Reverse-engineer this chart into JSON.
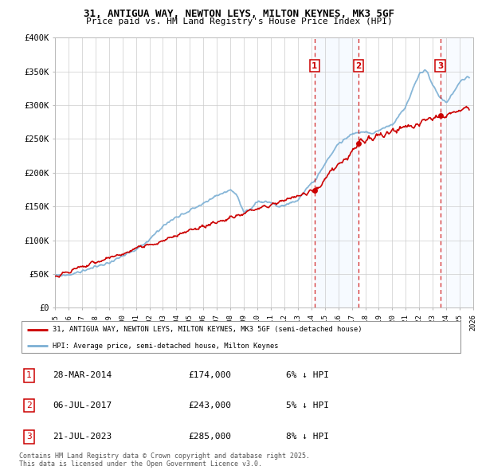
{
  "title_line1": "31, ANTIGUA WAY, NEWTON LEYS, MILTON KEYNES, MK3 5GF",
  "title_line2": "Price paid vs. HM Land Registry's House Price Index (HPI)",
  "ylabel_ticks": [
    "£0",
    "£50K",
    "£100K",
    "£150K",
    "£200K",
    "£250K",
    "£300K",
    "£350K",
    "£400K"
  ],
  "ytick_values": [
    0,
    50000,
    100000,
    150000,
    200000,
    250000,
    300000,
    350000,
    400000
  ],
  "hpi_color": "#7bafd4",
  "price_color": "#cc0000",
  "vline_color": "#cc0000",
  "shade_color": "#ddeeff",
  "legend_label_red": "31, ANTIGUA WAY, NEWTON LEYS, MILTON KEYNES, MK3 5GF (semi-detached house)",
  "legend_label_blue": "HPI: Average price, semi-detached house, Milton Keynes",
  "sales": [
    {
      "label": "1",
      "date": "28-MAR-2014",
      "price": 174000,
      "note": "6% ↓ HPI",
      "year": 2014.24
    },
    {
      "label": "2",
      "date": "06-JUL-2017",
      "price": 243000,
      "note": "5% ↓ HPI",
      "year": 2017.51
    },
    {
      "label": "3",
      "date": "21-JUL-2023",
      "price": 285000,
      "note": "8% ↓ HPI",
      "year": 2023.55
    }
  ],
  "footer": "Contains HM Land Registry data © Crown copyright and database right 2025.\nThis data is licensed under the Open Government Licence v3.0.",
  "xmin": 1995,
  "xmax": 2026,
  "ymin": 0,
  "ymax": 400000
}
